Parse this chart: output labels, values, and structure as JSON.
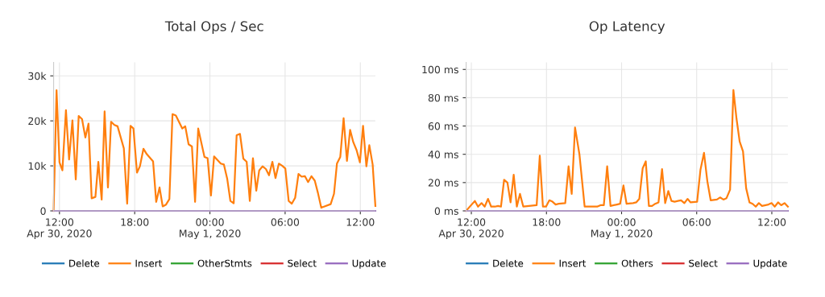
{
  "chart_data": [
    {
      "type": "line",
      "title": "Total Ops / Sec",
      "xlim": [
        "2020-04-30T11:32",
        "2020-05-01T13:12"
      ],
      "ylim": [
        0,
        33000
      ],
      "xticks": [
        {
          "value": "2020-04-30T12:00",
          "label": "12:00\nApr 30, 2020"
        },
        {
          "value": "2020-04-30T18:00",
          "label": "18:00"
        },
        {
          "value": "2020-05-01T00:00",
          "label": "00:00\nMay 1, 2020"
        },
        {
          "value": "2020-05-01T06:00",
          "label": "06:00"
        },
        {
          "value": "2020-05-01T12:00",
          "label": "12:00"
        }
      ],
      "yticks": [
        0,
        {
          "value": 10000,
          "label": "10k"
        },
        {
          "value": 20000,
          "label": "20k"
        },
        {
          "value": 30000,
          "label": "30k"
        }
      ],
      "grid": true,
      "legend": "bottom",
      "marker": "none",
      "line_style": "solid",
      "series": [
        {
          "name": "Delete",
          "color": "#1f77b4"
        },
        {
          "name": "Insert",
          "color": "#ff7f0e",
          "x": [
            "2020-04-30T11:32",
            "2020-04-30T11:46",
            "2020-04-30T12:00",
            "2020-04-30T12:14",
            "2020-04-30T12:31",
            "2020-04-30T12:46",
            "2020-04-30T13:02",
            "2020-04-30T13:18",
            "2020-04-30T13:32",
            "2020-04-30T13:48",
            "2020-04-30T14:04",
            "2020-04-30T14:19",
            "2020-04-30T14:34",
            "2020-04-30T14:52",
            "2020-04-30T15:06",
            "2020-04-30T15:22",
            "2020-04-30T15:36",
            "2020-04-30T15:52",
            "2020-04-30T16:07",
            "2020-04-30T16:23",
            "2020-04-30T16:38",
            "2020-04-30T17:08",
            "2020-04-30T17:24",
            "2020-04-30T17:40",
            "2020-04-30T17:54",
            "2020-04-30T18:11",
            "2020-04-30T18:25",
            "2020-04-30T18:42",
            "2020-04-30T18:58",
            "2020-04-30T19:28",
            "2020-04-30T19:43",
            "2020-04-30T19:59",
            "2020-04-30T20:14",
            "2020-04-30T20:30",
            "2020-04-30T20:46",
            "2020-04-30T21:01",
            "2020-04-30T21:17",
            "2020-04-30T21:48",
            "2020-04-30T22:02",
            "2020-04-30T22:18",
            "2020-04-30T22:34",
            "2020-04-30T22:49",
            "2020-04-30T23:04",
            "2020-04-30T23:34",
            "2020-04-30T23:49",
            "2020-05-01T00:05",
            "2020-05-01T00:20",
            "2020-05-01T00:52",
            "2020-05-01T01:07",
            "2020-05-01T01:23",
            "2020-05-01T01:38",
            "2020-05-01T01:54",
            "2020-05-01T02:08",
            "2020-05-01T02:24",
            "2020-05-01T02:40",
            "2020-05-01T02:56",
            "2020-05-01T03:11",
            "2020-05-01T03:26",
            "2020-05-01T03:42",
            "2020-05-01T03:56",
            "2020-05-01T04:12",
            "2020-05-01T04:28",
            "2020-05-01T04:43",
            "2020-05-01T04:59",
            "2020-05-01T05:14",
            "2020-05-01T05:30",
            "2020-05-01T05:47",
            "2020-05-01T06:01",
            "2020-05-01T06:17",
            "2020-05-01T06:32",
            "2020-05-01T06:48",
            "2020-05-01T07:04",
            "2020-05-01T07:19",
            "2020-05-01T07:35",
            "2020-05-01T07:50",
            "2020-05-01T08:06",
            "2020-05-01T08:22",
            "2020-05-01T08:37",
            "2020-05-01T08:53",
            "2020-05-01T09:38",
            "2020-05-01T09:54",
            "2020-05-01T10:08",
            "2020-05-01T10:24",
            "2020-05-01T10:40",
            "2020-05-01T10:56",
            "2020-05-01T11:11",
            "2020-05-01T11:26",
            "2020-05-01T11:42",
            "2020-05-01T11:58",
            "2020-05-01T12:13",
            "2020-05-01T12:29",
            "2020-05-01T12:43",
            "2020-05-01T12:59",
            "2020-05-01T13:12"
          ],
          "values": [
            0,
            26800,
            10800,
            9000,
            22400,
            11400,
            20100,
            7000,
            21100,
            20400,
            16300,
            19400,
            2800,
            3100,
            10900,
            2500,
            22100,
            5200,
            19800,
            19100,
            18800,
            13900,
            1600,
            18900,
            18300,
            8500,
            9900,
            13800,
            12600,
            11000,
            2000,
            5200,
            1000,
            1400,
            2600,
            21500,
            21200,
            18300,
            18800,
            14800,
            14300,
            2000,
            18300,
            12000,
            11700,
            3400,
            12100,
            10500,
            10300,
            7100,
            2200,
            1700,
            16800,
            17100,
            11600,
            10900,
            2200,
            11700,
            4500,
            9000,
            9900,
            9300,
            7900,
            10900,
            7300,
            10500,
            10000,
            9400,
            2200,
            1600,
            2900,
            8200,
            7600,
            7700,
            6400,
            7700,
            6700,
            4000,
            700,
            1500,
            3800,
            10500,
            12000,
            20600,
            11100,
            18000,
            15300,
            13500,
            10800,
            18900,
            9900,
            14600,
            10300,
            1100
          ]
        },
        {
          "name": "OtherStmts",
          "color": "#2ca02c"
        },
        {
          "name": "Select",
          "color": "#d62728"
        },
        {
          "name": "Update",
          "color": "#9467bd",
          "x": [
            "2020-04-30T11:32",
            "2020-05-01T13:12"
          ],
          "values": [
            0,
            0
          ]
        }
      ]
    },
    {
      "type": "line",
      "title": "Op Latency",
      "xlim": [
        "2020-04-30T11:35",
        "2020-05-01T13:17"
      ],
      "ylim": [
        0,
        105
      ],
      "xticks": [
        {
          "value": "2020-04-30T12:00",
          "label": "12:00\nApr 30, 2020"
        },
        {
          "value": "2020-04-30T18:00",
          "label": "18:00"
        },
        {
          "value": "2020-05-01T00:00",
          "label": "00:00\nMay 1, 2020"
        },
        {
          "value": "2020-05-01T06:00",
          "label": "06:00"
        },
        {
          "value": "2020-05-01T12:00",
          "label": "12:00"
        }
      ],
      "yticks": [
        {
          "value": 0,
          "label": "0 ms"
        },
        {
          "value": 20,
          "label": "20 ms"
        },
        {
          "value": 40,
          "label": "40 ms"
        },
        {
          "value": 60,
          "label": "60 ms"
        },
        {
          "value": 80,
          "label": "80 ms"
        },
        {
          "value": 100,
          "label": "100 ms"
        }
      ],
      "grid": true,
      "legend": "bottom",
      "marker": "none",
      "line_style": "solid",
      "series": [
        {
          "name": "Delete",
          "color": "#1f77b4"
        },
        {
          "name": "Insert",
          "color": "#ff7f0e",
          "x": [
            "2020-04-30T11:35",
            "2020-04-30T11:58",
            "2020-04-30T12:17",
            "2020-04-30T12:32",
            "2020-04-30T12:49",
            "2020-04-30T13:04",
            "2020-04-30T13:20",
            "2020-04-30T13:35",
            "2020-04-30T13:53",
            "2020-04-30T14:08",
            "2020-04-30T14:22",
            "2020-04-30T14:37",
            "2020-04-30T14:53",
            "2020-04-30T15:08",
            "2020-04-30T15:23",
            "2020-04-30T15:38",
            "2020-04-30T15:53",
            "2020-04-30T16:09",
            "2020-04-30T17:13",
            "2020-04-30T17:28",
            "2020-04-30T17:43",
            "2020-04-30T17:58",
            "2020-04-30T18:14",
            "2020-04-30T18:29",
            "2020-04-30T18:44",
            "2020-04-30T18:59",
            "2020-04-30T19:30",
            "2020-04-30T19:46",
            "2020-04-30T20:01",
            "2020-04-30T20:17",
            "2020-04-30T20:38",
            "2020-04-30T21:03",
            "2020-04-30T22:03",
            "2020-04-30T22:19",
            "2020-04-30T22:35",
            "2020-04-30T22:51",
            "2020-04-30T23:07",
            "2020-04-30T23:38",
            "2020-04-30T23:53",
            "2020-05-01T00:09",
            "2020-05-01T00:24",
            "2020-05-01T00:55",
            "2020-05-01T01:10",
            "2020-05-01T01:25",
            "2020-05-01T01:41",
            "2020-05-01T01:56",
            "2020-05-01T02:11",
            "2020-05-01T02:26",
            "2020-05-01T02:41",
            "2020-05-01T02:57",
            "2020-05-01T03:14",
            "2020-05-01T03:29",
            "2020-05-01T03:44",
            "2020-05-01T03:59",
            "2020-05-01T04:14",
            "2020-05-01T04:30",
            "2020-05-01T04:45",
            "2020-05-01T05:01",
            "2020-05-01T05:16",
            "2020-05-01T05:31",
            "2020-05-01T06:02",
            "2020-05-01T06:18",
            "2020-05-01T06:35",
            "2020-05-01T06:51",
            "2020-05-01T07:07",
            "2020-05-01T07:37",
            "2020-05-01T07:52",
            "2020-05-01T08:08",
            "2020-05-01T08:23",
            "2020-05-01T08:40",
            "2020-05-01T08:56",
            "2020-05-01T09:11",
            "2020-05-01T09:26",
            "2020-05-01T09:42",
            "2020-05-01T09:57",
            "2020-05-01T10:13",
            "2020-05-01T10:28",
            "2020-05-01T10:43",
            "2020-05-01T10:58",
            "2020-05-01T11:13",
            "2020-05-01T11:44",
            "2020-05-01T11:59",
            "2020-05-01T12:14",
            "2020-05-01T12:30",
            "2020-05-01T12:45",
            "2020-05-01T13:01",
            "2020-05-01T13:17"
          ],
          "values": [
            0,
            3.9,
            7,
            3,
            5.5,
            3,
            8.5,
            3,
            3,
            3.5,
            3,
            22,
            20,
            6,
            25.5,
            3,
            12,
            3,
            4,
            39,
            3,
            3,
            7.5,
            6.5,
            4.5,
            5,
            5.5,
            31.5,
            12,
            59,
            40,
            3,
            3,
            4,
            4,
            31.5,
            3.5,
            4.5,
            5,
            18,
            5,
            5.5,
            6,
            8.5,
            30,
            35,
            3.5,
            3.5,
            5,
            6,
            29.5,
            5.5,
            14,
            7,
            6.5,
            7,
            7.5,
            5.5,
            8.5,
            6,
            6.5,
            29,
            41,
            21,
            7.5,
            8,
            9.5,
            8,
            9,
            15,
            85.5,
            65,
            49,
            42,
            16,
            6,
            5,
            3,
            5.5,
            3.5,
            4.5,
            5.5,
            3,
            6,
            4,
            5.5,
            3
          ]
        },
        {
          "name": "Others",
          "color": "#2ca02c"
        },
        {
          "name": "Select",
          "color": "#d62728"
        },
        {
          "name": "Update",
          "color": "#9467bd",
          "x": [
            "2020-04-30T11:35",
            "2020-05-01T13:17"
          ],
          "values": [
            0,
            0
          ]
        }
      ]
    }
  ]
}
